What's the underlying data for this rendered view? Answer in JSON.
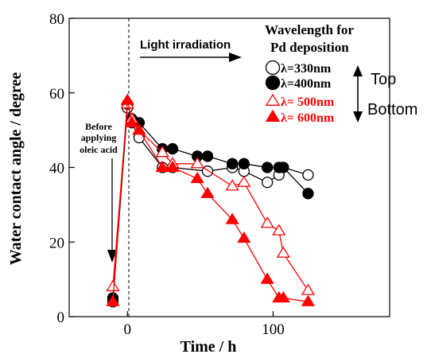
{
  "chart_data": {
    "type": "line",
    "xlabel": "Time / h",
    "ylabel": "Water contact angle / degree",
    "xlim": [
      -40,
      180
    ],
    "ylim": [
      0,
      80
    ],
    "x_ticks": [
      0,
      100
    ],
    "y_ticks": [
      0,
      20,
      40,
      60,
      80
    ],
    "grid": false,
    "legend": {
      "placement": "top-right",
      "title_lines": [
        "Wavelength for",
        "Pd deposition"
      ],
      "order_labels": {
        "top": "Top",
        "bottom": "Bottom"
      }
    },
    "series": [
      {
        "name": "λ=330nm",
        "color": "#000000",
        "marker": "circle",
        "filled": false,
        "x": [
          -10,
          0,
          3,
          8,
          24,
          31,
          55,
          72,
          80,
          96,
          104,
          107,
          124
        ],
        "y": [
          4,
          56,
          52,
          48,
          40,
          40,
          39,
          40,
          39,
          36,
          38,
          40,
          38
        ]
      },
      {
        "name": "λ=400nm",
        "color": "#000000",
        "marker": "circle",
        "filled": true,
        "x": [
          -10,
          0,
          3,
          8,
          24,
          31,
          48,
          55,
          72,
          80,
          96,
          104,
          107,
          124
        ],
        "y": [
          5,
          57,
          53,
          52,
          45,
          45,
          43,
          43,
          41,
          41,
          40,
          40,
          40,
          33
        ]
      },
      {
        "name": "λ= 500nm",
        "color": "#ff0000",
        "marker": "triangle",
        "filled": false,
        "x": [
          -10,
          0,
          3,
          8,
          24,
          31,
          48,
          72,
          80,
          96,
          104,
          107,
          124
        ],
        "y": [
          8,
          57,
          53,
          50,
          44,
          41,
          41,
          35,
          36,
          25,
          23,
          17,
          7
        ]
      },
      {
        "name": "λ= 600nm",
        "color": "#ff0000",
        "marker": "triangle",
        "filled": true,
        "x": [
          -10,
          0,
          3,
          8,
          24,
          31,
          48,
          55,
          72,
          80,
          96,
          104,
          107,
          124
        ],
        "y": [
          4,
          58,
          52,
          50,
          40,
          40,
          37,
          33,
          26,
          21,
          10,
          5,
          5,
          4
        ]
      }
    ],
    "annotations": {
      "light_irradiation": "Light irradiation",
      "before_lines": [
        "Before",
        "applying",
        "oleic acid"
      ]
    }
  }
}
